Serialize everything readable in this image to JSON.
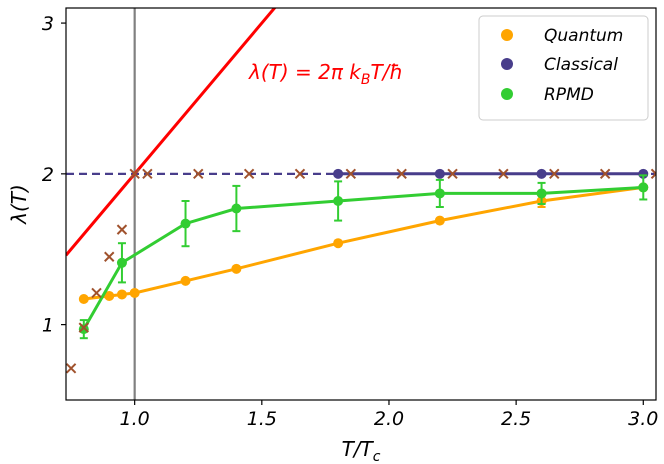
{
  "chart_data": {
    "type": "scatter",
    "xlabel": "T/T",
    "xlabel_sub": "c",
    "ylabel": "λ(T)",
    "xlim": [
      0.73,
      3.05
    ],
    "ylim": [
      0.5,
      3.1
    ],
    "xticks": [
      1.0,
      1.5,
      2.0,
      2.5,
      3.0
    ],
    "xtick_labels": [
      "1.0",
      "1.5",
      "2.0",
      "2.5",
      "3.0"
    ],
    "yticks": [
      1,
      2,
      3
    ],
    "ytick_labels": [
      "1",
      "2",
      "3"
    ],
    "grid": false,
    "legend_position": "top-right",
    "series": [
      {
        "name": "Quantum",
        "color": "#ffa500",
        "marker": "circle",
        "line": true,
        "x": [
          0.8,
          0.9,
          0.95,
          1.0,
          1.2,
          1.4,
          1.8,
          2.2,
          2.6,
          3.0
        ],
        "y": [
          1.17,
          1.19,
          1.2,
          1.21,
          1.29,
          1.37,
          1.54,
          1.69,
          1.82,
          1.91
        ],
        "yerr": [
          0,
          0,
          0,
          0,
          0,
          0,
          0,
          0,
          0.04,
          0
        ]
      },
      {
        "name": "Classical",
        "color": "#483d8b",
        "marker": "circle",
        "line": true,
        "x": [
          1.8,
          2.2,
          2.6,
          3.0
        ],
        "y": [
          2.0,
          2.0,
          2.0,
          2.0
        ],
        "yerr": [
          0,
          0,
          0,
          0
        ]
      },
      {
        "name": "RPMD",
        "color": "#32cd32",
        "marker": "circle",
        "line": true,
        "x": [
          0.8,
          0.95,
          1.2,
          1.4,
          1.8,
          2.2,
          2.6,
          3.0
        ],
        "y": [
          0.97,
          1.41,
          1.67,
          1.77,
          1.82,
          1.87,
          1.87,
          1.91
        ],
        "yerr": [
          0.06,
          0.13,
          0.15,
          0.15,
          0.13,
          0.09,
          0.07,
          0.08
        ]
      },
      {
        "name": "",
        "color": "#a0522d",
        "marker": "x",
        "line": false,
        "x": [
          0.75,
          0.8,
          0.85,
          0.9,
          0.95,
          1.0,
          1.05,
          1.25,
          1.45,
          1.65,
          1.85,
          2.05,
          2.25,
          2.45,
          2.65,
          2.85,
          3.05
        ],
        "y": [
          0.71,
          0.98,
          1.21,
          1.45,
          1.63,
          2.0,
          2.0,
          2.0,
          2.0,
          2.0,
          2.0,
          2.0,
          2.0,
          2.0,
          2.0,
          2.0,
          2.0
        ]
      }
    ],
    "reference_lines": [
      {
        "kind": "vertical",
        "x": 1.0,
        "color": "#808080",
        "style": "solid"
      },
      {
        "kind": "horizontal",
        "y": 2.0,
        "color": "#483d8b",
        "style": "dashed"
      },
      {
        "kind": "function",
        "slope": 6.2832,
        "color": "#ff0000",
        "style": "solid"
      }
    ],
    "annotation": "λ(T) = 2π k_BT/ħ",
    "annotation_color": "#ff0000"
  }
}
